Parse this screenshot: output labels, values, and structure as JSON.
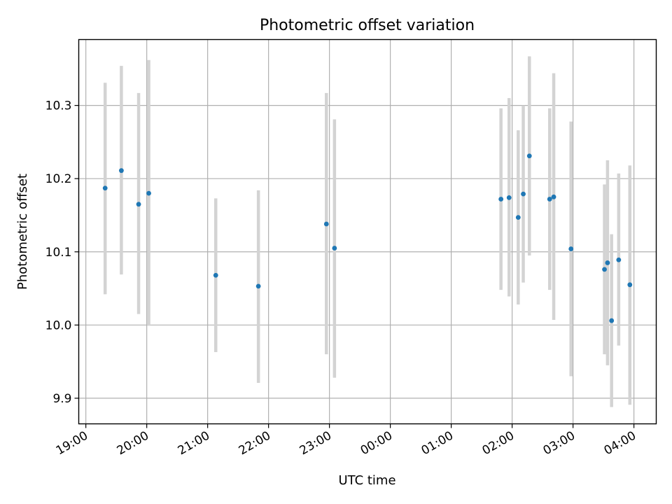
{
  "chart_data": {
    "type": "scatter",
    "title": "Photometric offset variation",
    "xlabel": "UTC time",
    "ylabel": "Photometric offset",
    "x_ticks": [
      "19:00",
      "20:00",
      "21:00",
      "22:00",
      "23:00",
      "00:00",
      "01:00",
      "02:00",
      "03:00",
      "04:00"
    ],
    "y_ticks": [
      "9.9",
      "10.0",
      "10.1",
      "10.2",
      "10.3"
    ],
    "xlim": [
      "18:53",
      "04:22"
    ],
    "ylim": [
      9.865,
      10.39
    ],
    "grid": true,
    "colors": {
      "points": "#1f77b4",
      "errorbars": "#d3d3d3",
      "grid": "#b0b0b0"
    },
    "points": [
      {
        "t": "19:19",
        "y": 10.187,
        "low": 10.042,
        "high": 10.331
      },
      {
        "t": "19:35",
        "y": 10.211,
        "low": 10.069,
        "high": 10.354
      },
      {
        "t": "19:52",
        "y": 10.165,
        "low": 10.015,
        "high": 10.317
      },
      {
        "t": "20:02",
        "y": 10.18,
        "low": 9.999,
        "high": 10.362
      },
      {
        "t": "21:08",
        "y": 10.068,
        "low": 9.963,
        "high": 10.173
      },
      {
        "t": "21:50",
        "y": 10.053,
        "low": 9.921,
        "high": 10.184
      },
      {
        "t": "22:57",
        "y": 10.138,
        "low": 9.96,
        "high": 10.317
      },
      {
        "t": "23:05",
        "y": 10.105,
        "low": 9.928,
        "high": 10.281
      },
      {
        "t": "01:49",
        "y": 10.172,
        "low": 10.048,
        "high": 10.296
      },
      {
        "t": "01:57",
        "y": 10.174,
        "low": 10.039,
        "high": 10.31
      },
      {
        "t": "02:06",
        "y": 10.147,
        "low": 10.028,
        "high": 10.266
      },
      {
        "t": "02:11",
        "y": 10.179,
        "low": 10.058,
        "high": 10.3
      },
      {
        "t": "02:17",
        "y": 10.231,
        "low": 10.095,
        "high": 10.367
      },
      {
        "t": "02:37",
        "y": 10.172,
        "low": 10.048,
        "high": 10.296
      },
      {
        "t": "02:41",
        "y": 10.175,
        "low": 10.007,
        "high": 10.344
      },
      {
        "t": "02:58",
        "y": 10.104,
        "low": 9.93,
        "high": 10.278
      },
      {
        "t": "03:31",
        "y": 10.076,
        "low": 9.96,
        "high": 10.192
      },
      {
        "t": "03:34",
        "y": 10.085,
        "low": 9.945,
        "high": 10.225
      },
      {
        "t": "03:38",
        "y": 10.006,
        "low": 9.888,
        "high": 10.124
      },
      {
        "t": "03:45",
        "y": 10.089,
        "low": 9.972,
        "high": 10.207
      },
      {
        "t": "03:56",
        "y": 10.055,
        "low": 9.891,
        "high": 10.218
      }
    ]
  }
}
